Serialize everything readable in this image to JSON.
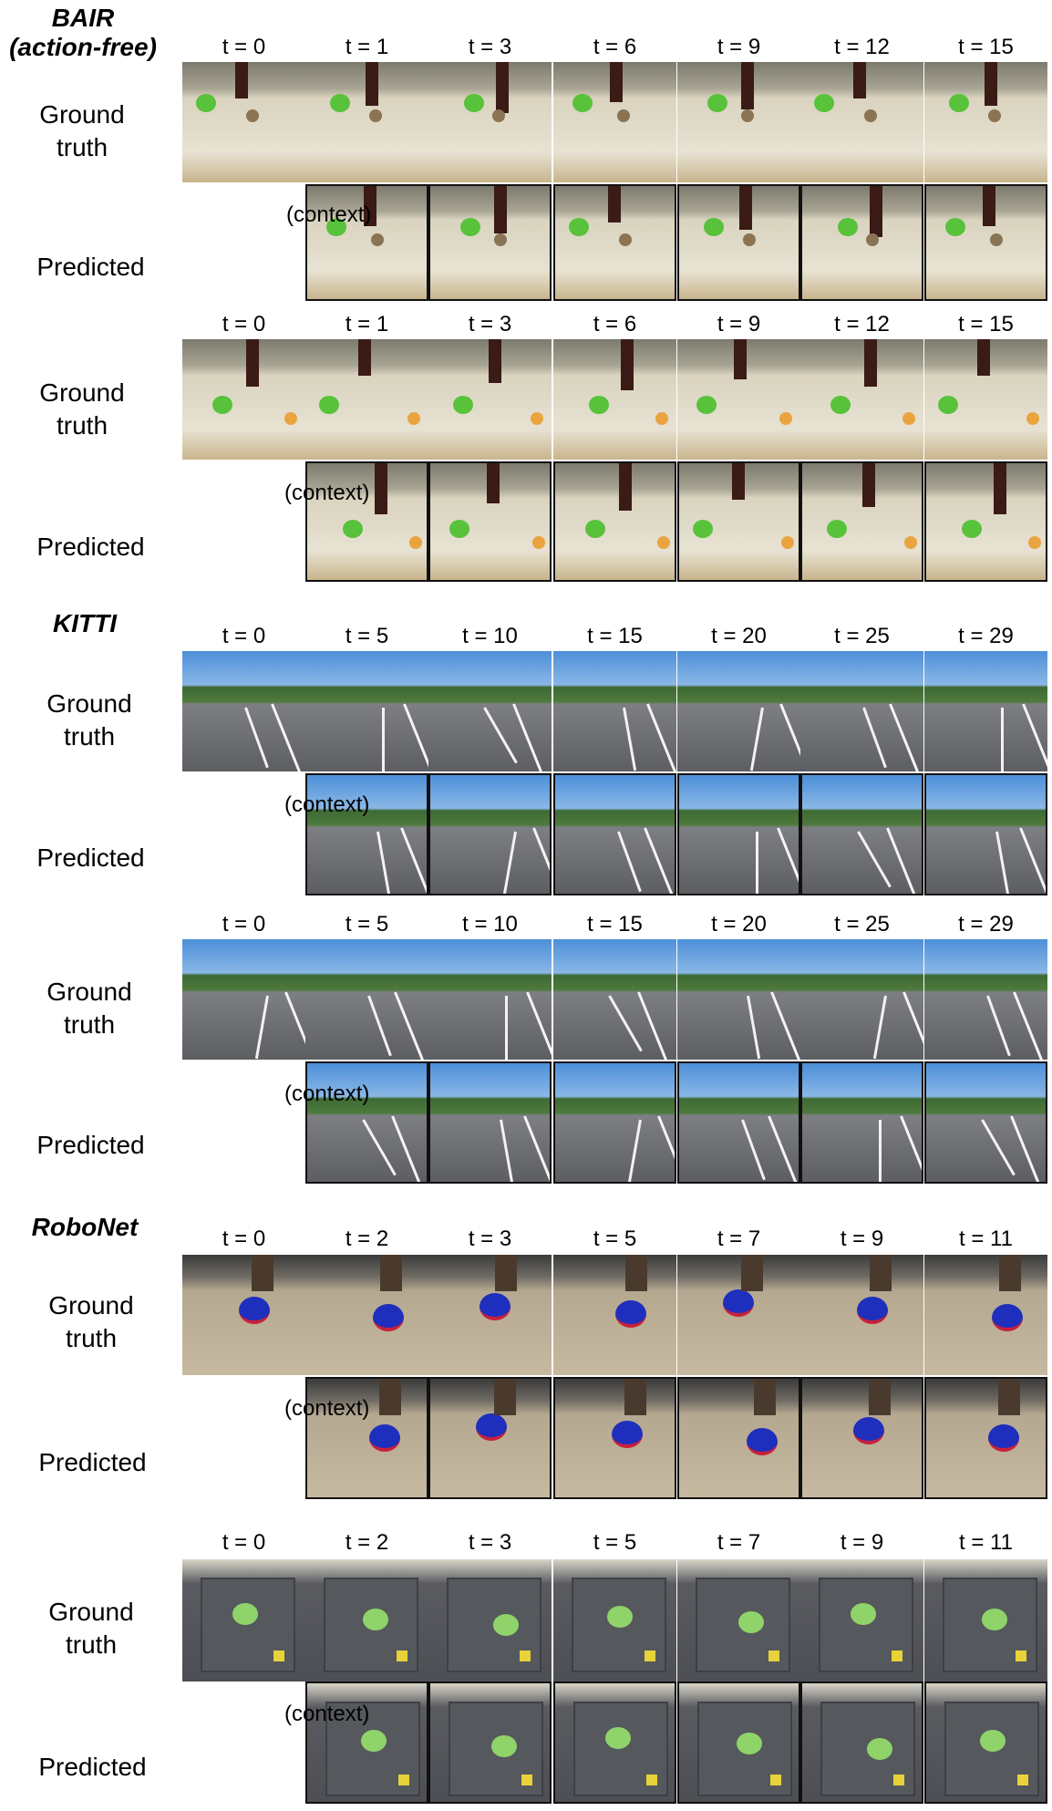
{
  "groups": [
    {
      "title": "BAIR\n(action-free)",
      "dataset": "bair",
      "blocks": [
        {
          "times": [
            "t = 0",
            "t = 1",
            "t = 3",
            "t = 6",
            "t = 9",
            "t = 12",
            "t = 15"
          ]
        },
        {
          "times": [
            "t = 0",
            "t = 1",
            "t = 3",
            "t = 6",
            "t = 9",
            "t = 12",
            "t = 15"
          ]
        }
      ]
    },
    {
      "title": "KITTI",
      "dataset": "kitti",
      "blocks": [
        {
          "times": [
            "t = 0",
            "t = 5",
            "t = 10",
            "t = 15",
            "t = 20",
            "t = 25",
            "t = 29"
          ]
        },
        {
          "times": [
            "t = 0",
            "t = 5",
            "t = 10",
            "t = 15",
            "t = 20",
            "t = 25",
            "t = 29"
          ]
        }
      ]
    },
    {
      "title": "RoboNet",
      "dataset": "robonet",
      "blocks": [
        {
          "times": [
            "t = 0",
            "t = 2",
            "t = 3",
            "t = 5",
            "t = 7",
            "t = 9",
            "t = 11"
          ]
        },
        {
          "times": [
            "t = 0",
            "t = 2",
            "t = 3",
            "t = 5",
            "t = 7",
            "t = 9",
            "t = 11"
          ]
        }
      ]
    }
  ],
  "labels": {
    "ground_truth": "Ground\ntruth",
    "predicted": "Predicted",
    "context": "(context)"
  }
}
